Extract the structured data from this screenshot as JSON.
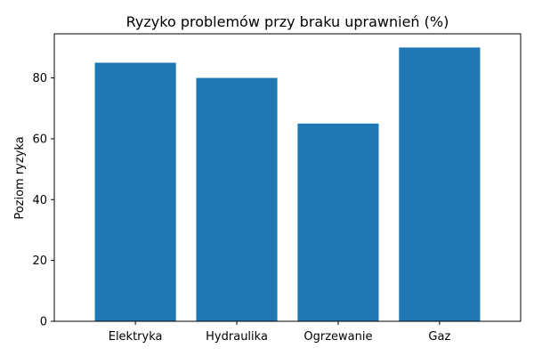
{
  "chart_data": {
    "type": "bar",
    "title": "Ryzyko problemów przy braku uprawnień (%)",
    "xlabel": "",
    "ylabel": "Poziom ryzyka",
    "categories": [
      "Elektryka",
      "Hydraulika",
      "Ogrzewanie",
      "Gaz"
    ],
    "values": [
      85,
      80,
      65,
      90
    ],
    "ylim": [
      0,
      94.5
    ],
    "yticks": [
      0,
      20,
      40,
      60,
      80
    ],
    "bar_color": "#1f77b4",
    "grid": false,
    "legend": "none"
  }
}
